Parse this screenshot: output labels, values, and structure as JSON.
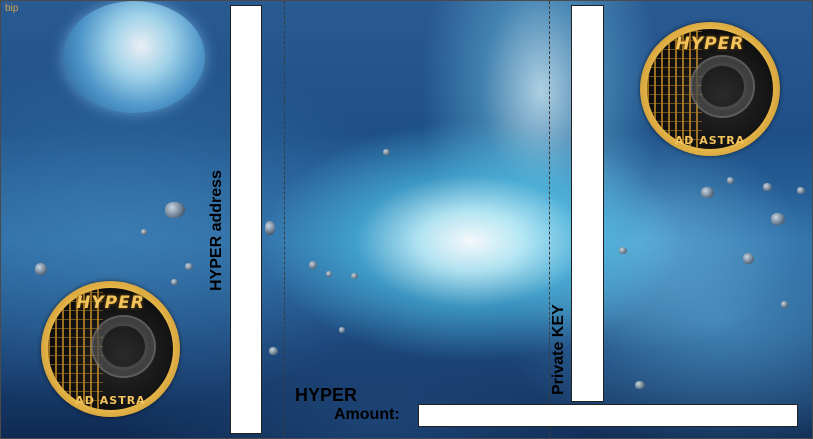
{
  "watermark": "bip",
  "labels": {
    "address": "HYPER address",
    "private_key": "Private KEY",
    "currency": "HYPER",
    "amount": "Amount:"
  },
  "coin": {
    "top_text": "HYPER",
    "bottom_text": "AD ASTRA"
  },
  "colors": {
    "space_dark": "#0f2a52",
    "space_mid": "#2c6aa3",
    "nebula": "#c8f8ff",
    "coin_gold": "#e7b84b",
    "fold_line": "#3c3c3c"
  }
}
